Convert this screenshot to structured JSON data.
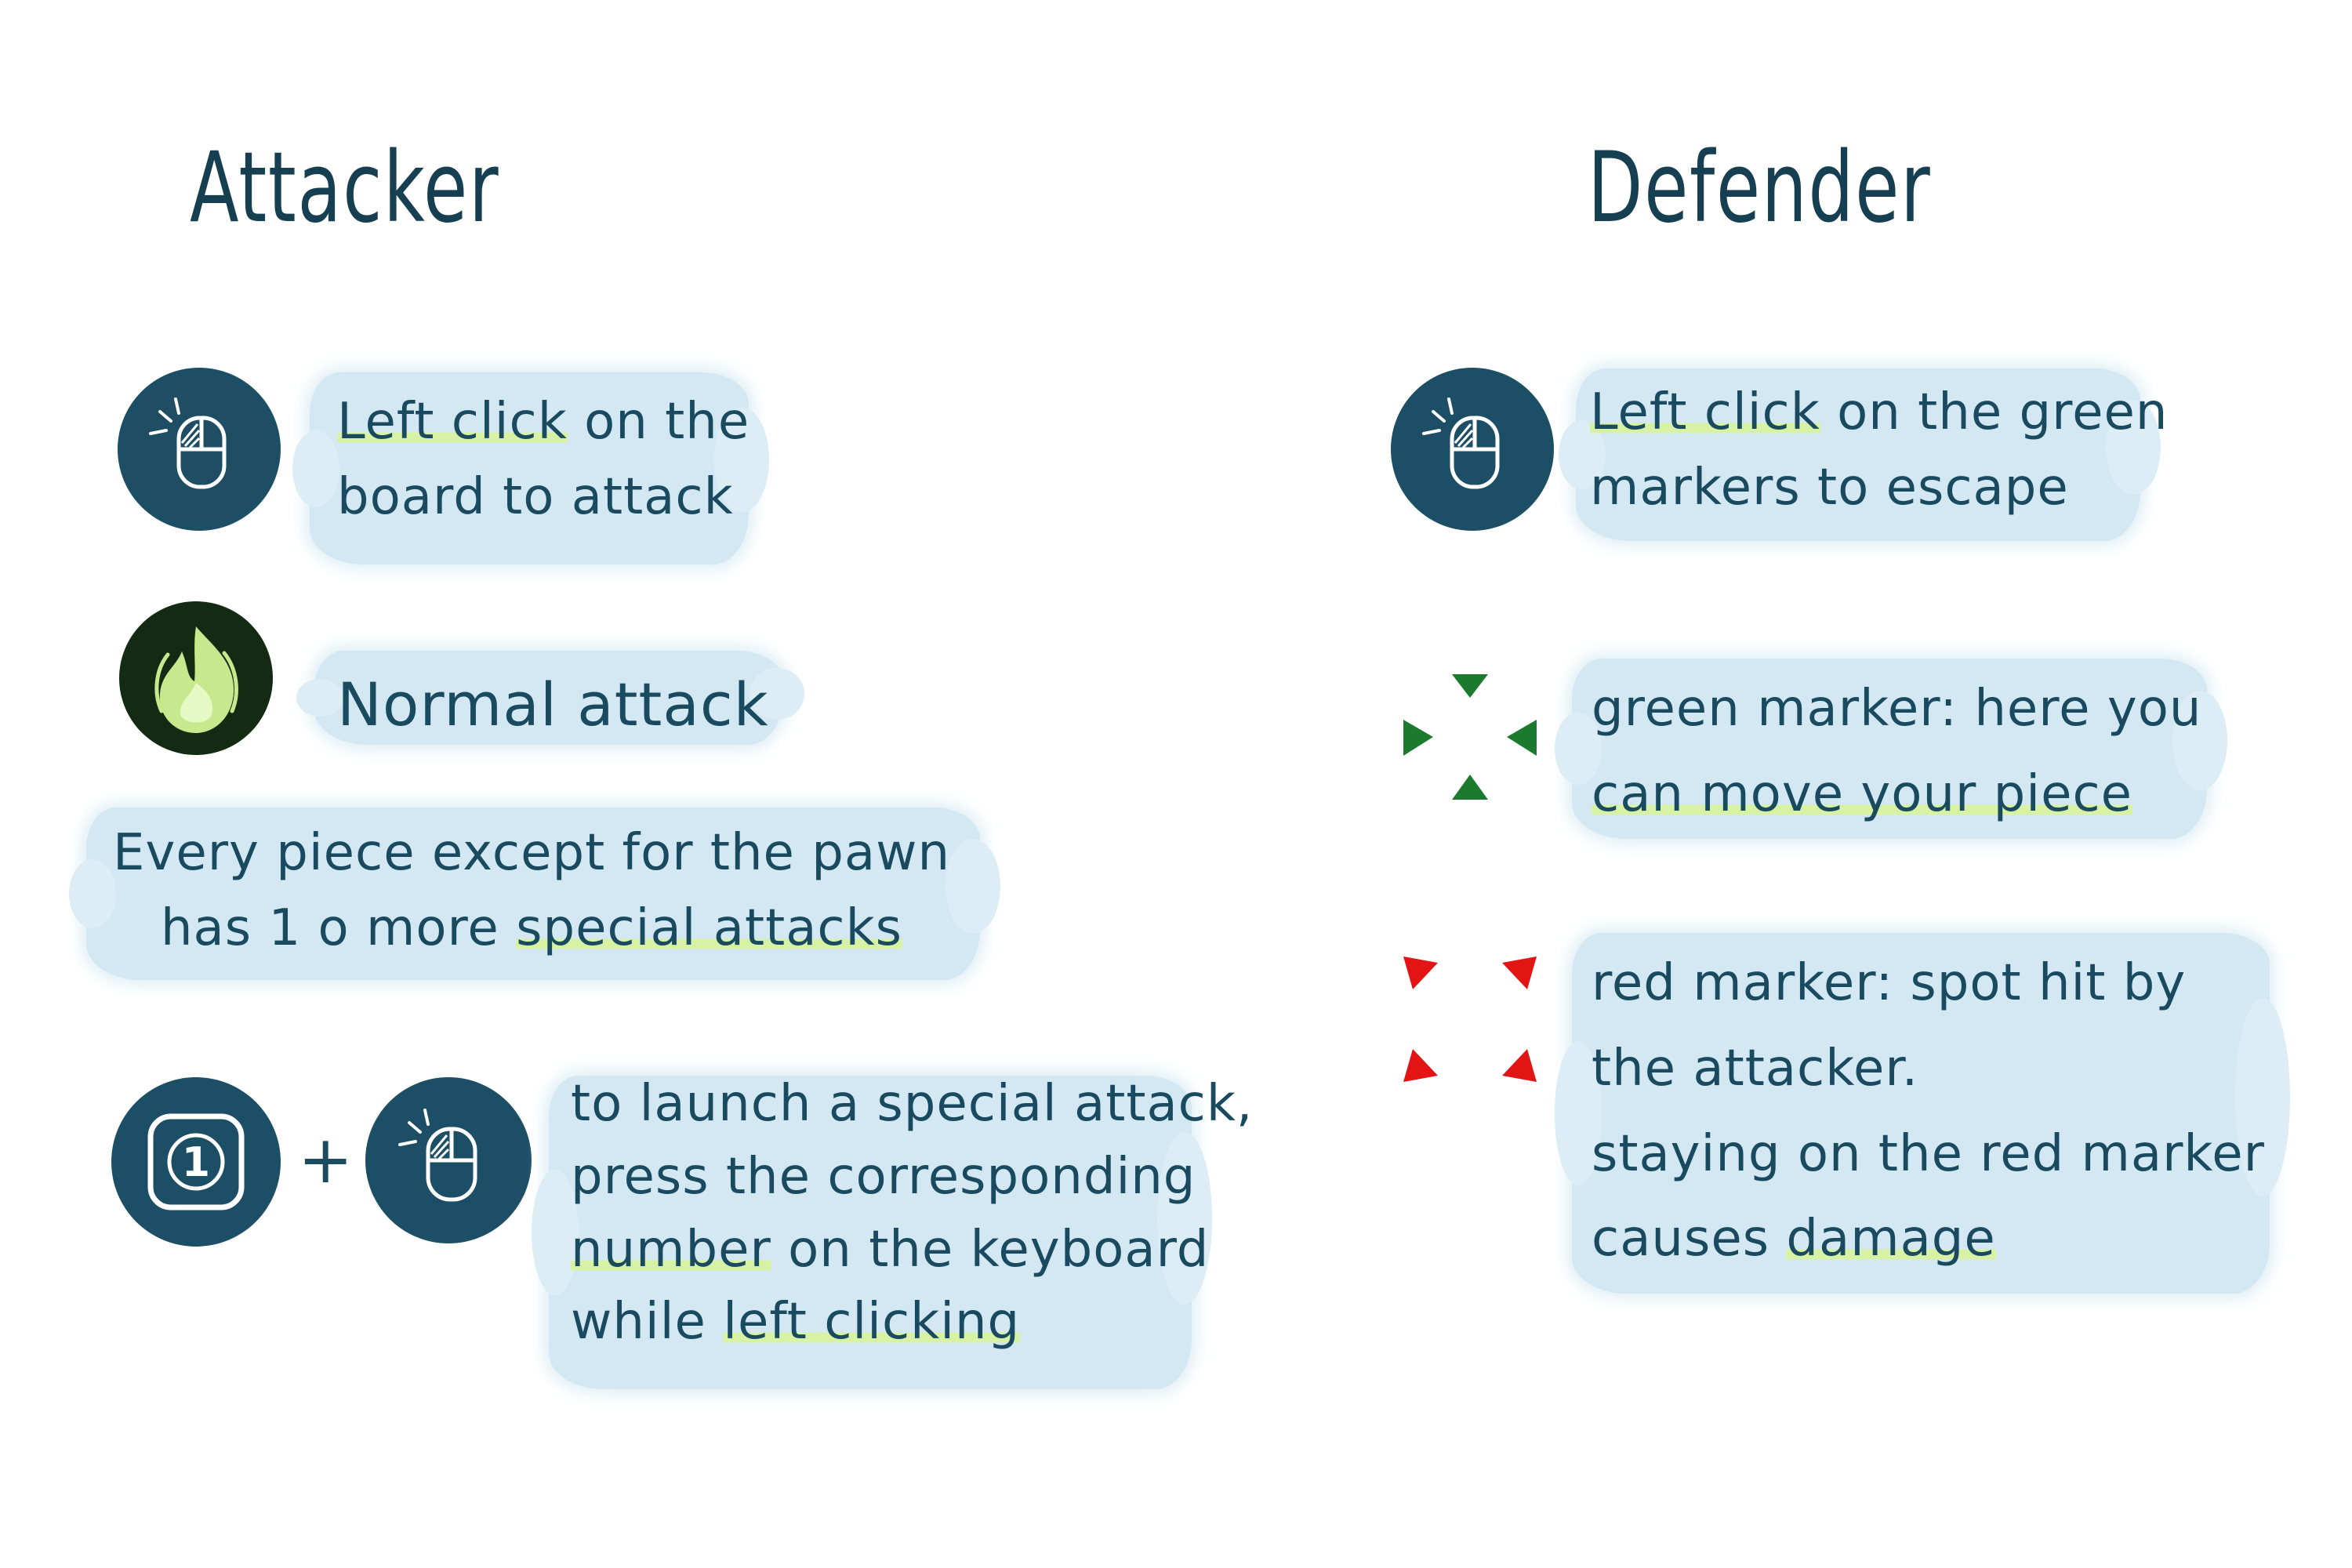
{
  "attacker": {
    "title": "Attacker",
    "left_click": {
      "text_pre": "",
      "text_hl": "Left click",
      "text_post": " on the",
      "line2": "board to attack"
    },
    "normal_attack": {
      "text": "Normal attack"
    },
    "special_info": {
      "line1": "Every piece except for the pawn",
      "line2_pre": "has 1 o more ",
      "line2_hl": "special attacks"
    },
    "special_attack": {
      "key_label": "1",
      "plus": "+",
      "line1": "to launch a special attack,",
      "line2": "press the corresponding",
      "line3_hl": "number",
      "line3_post": " on the keyboard",
      "line4_pre": "while ",
      "line4_hl": "left clicking"
    }
  },
  "defender": {
    "title": "Defender",
    "left_click": {
      "text_hl": "Left click",
      "text_post": " on the green",
      "line2": "markers to escape"
    },
    "green_marker": {
      "line1": "green marker: here you",
      "line2_hl": "can move your piece"
    },
    "red_marker": {
      "line1": "red marker: spot hit by",
      "line2": "the attacker.",
      "line3": "staying on the red marker",
      "line4_pre": "causes ",
      "line4_hl": "damage"
    }
  },
  "colors": {
    "ink": "#15485e",
    "icon_fill": "#1c4f66",
    "highlight": "#d7f2a4",
    "brush": "#d3e8f2",
    "fire_bg": "#132b12",
    "fire": "#c6e98e",
    "green_marker": "#1b7a2e",
    "red_marker": "#e31414"
  },
  "icons": {
    "mouse": "mouse-left-click-icon",
    "fire": "fire-icon",
    "key": "keyboard-key-1-icon",
    "green_marker": "green-marker-icon",
    "red_marker": "red-marker-icon"
  }
}
